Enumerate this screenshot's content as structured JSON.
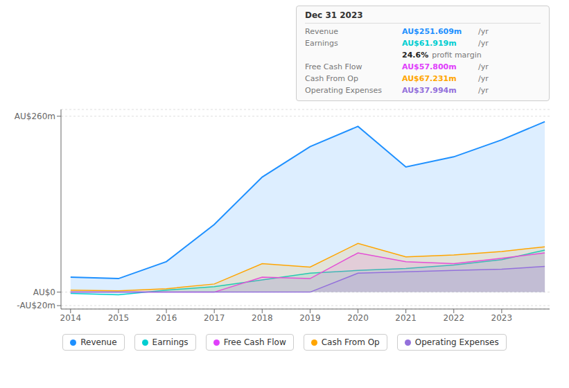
{
  "chart_data": {
    "type": "area",
    "x": [
      2014,
      2015,
      2016,
      2017,
      2018,
      2019,
      2020,
      2021,
      2022,
      2023,
      2023.9
    ],
    "xlim": [
      2013.8,
      2024.0
    ],
    "xticks": [
      2014,
      2015,
      2016,
      2017,
      2018,
      2019,
      2020,
      2021,
      2022,
      2023
    ],
    "ylim": [
      -25,
      270
    ],
    "yticks": [
      {
        "value": -20,
        "label": "-AU$20m"
      },
      {
        "value": 0,
        "label": "AU$0"
      },
      {
        "value": 260,
        "label": "AU$260m"
      }
    ],
    "grid": true,
    "legend": "bottom",
    "series": [
      {
        "name": "Revenue",
        "color": "#1e90ff",
        "values": [
          22,
          20,
          45,
          100,
          170,
          215,
          245,
          185,
          200,
          225,
          252
        ]
      },
      {
        "name": "Earnings",
        "color": "#00ced1",
        "values": [
          -2,
          -4,
          3,
          8,
          18,
          28,
          32,
          35,
          40,
          48,
          62
        ]
      },
      {
        "name": "Free Cash Flow",
        "color": "#e040fb",
        "values": [
          0,
          0,
          0,
          0,
          22,
          20,
          58,
          45,
          42,
          50,
          58
        ]
      },
      {
        "name": "Cash From Op",
        "color": "#ffa500",
        "values": [
          3,
          2,
          5,
          12,
          42,
          37,
          72,
          52,
          55,
          60,
          67
        ]
      },
      {
        "name": "Operating Expenses",
        "color": "#9370db",
        "values": [
          0,
          0,
          0,
          0,
          0,
          0,
          28,
          30,
          32,
          34,
          38
        ]
      }
    ],
    "annotations": {
      "title": "Dec 31 2023",
      "rows": [
        {
          "label": "Revenue",
          "value": "AU$251.609m",
          "suffix": "/yr",
          "color": "#1e90ff"
        },
        {
          "label": "Earnings",
          "value": "AU$61.919m",
          "suffix": "/yr",
          "color": "#00ced1"
        },
        {
          "value": "24.6%",
          "suffix": "profit margin",
          "color": "#ffffff"
        },
        {
          "label": "Free Cash Flow",
          "value": "AU$57.800m",
          "suffix": "/yr",
          "color": "#e040fb"
        },
        {
          "label": "Cash From Op",
          "value": "AU$67.231m",
          "suffix": "/yr",
          "color": "#ffa500"
        },
        {
          "label": "Operating Expenses",
          "value": "AU$37.994m",
          "suffix": "/yr",
          "color": "#9370db"
        }
      ]
    }
  }
}
